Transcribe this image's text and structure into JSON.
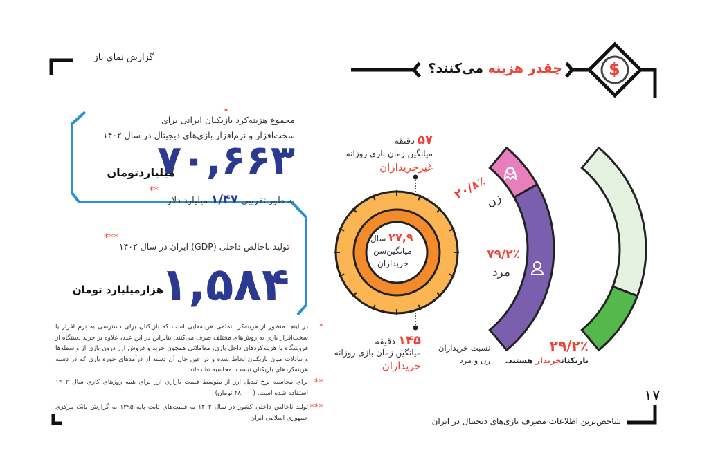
{
  "header": {
    "report_name": "گزارش نمای باز",
    "title_highlight": "چقدر هزینه",
    "title_rest": "می‌کنند؟",
    "icon": "dollar-icon"
  },
  "spending": {
    "star": "*",
    "line1": "مجموع هزینه‌کرد بازیکنان ایرانی برای",
    "line2": "سخت‌افزار و نرم‌افزار بازی‌های دیجیتال در سال ۱۴۰۲",
    "value": "۷۰,۶۶۳",
    "unit": "میلیاردتومان",
    "usd_stars": "**",
    "usd_prefix": "به طور تقریبی",
    "usd_value": "۱/۴۷",
    "usd_unit": "میلیارد دلار"
  },
  "gdp": {
    "stars": "***",
    "label": "تولید ناخالص داخلی (GDP) ایران در سال ۱۴۰۲",
    "value": "۱,۵۸۴",
    "unit": "هزارمیلیارد تومان"
  },
  "footnotes": [
    {
      "stars": "*",
      "text": "در اینجا منظور از هزینه‌کرد تمامی هزینه‌هایی است که بازیکنان برای دسترسی به نرم افزار یا سخت‌افزار بازی به روش‌های مختلف صرف می‌کنند. بنابراین در این عدد، علاوه بر خرید دستگاه از فروشگاه یا هزینه‌کردهای داخل بازی، معاملاتی همچون خرید و فروش ارز درون بازی از واسطه‌ها و تبادلات میان بازیکنان لحاظ شده و در عین حال آن دسته از درآمدهای حوزه بازی که در دسته هزینه‌کردهای بازیکنان نیست، محاسبه نشده‌اند."
    },
    {
      "stars": "**",
      "text": "برای محاسبه نرخ تبدیل ارز از متوسط قیمت بازاری ارز برای همه روزهای کاری سال ۱۴۰۲ استفاده شده است. (۴۸,۰۰۰ تومان)"
    },
    {
      "stars": "***",
      "text": "تولید ناخالص داخلی کشور در سال ۱۴۰۲ به قیمت‌های ثابت پایه ۱۳۹۵ به گزارش بانک مرکزی جمهوری اسلامی ایران"
    }
  ],
  "playtime": {
    "non_buyers": {
      "value": "۵۷",
      "unit": "دقیقه",
      "label": "میانگین زمان بازی روزانه",
      "group": "غیرخریداران"
    },
    "buyers": {
      "value": "۱۴۵",
      "unit": "دقیقه",
      "label": "میانگین زمان بازی روزانه",
      "group": "خریداران"
    },
    "age": {
      "value": "۲۷,۹",
      "unit": "سال",
      "label1": "میانگین‌سن",
      "label2": "خریداران"
    }
  },
  "gender": {
    "female": {
      "pct": "۲۰/۸٪",
      "label": "زن",
      "share": 20.8,
      "icon": "female-user-icon"
    },
    "male": {
      "pct": "۷۹/۲٪",
      "label": "مرد",
      "share": 79.2,
      "icon": "male-user-icon"
    },
    "caption1": "نسبت خریداران",
    "caption2": "زن و مرد"
  },
  "buyers_share": {
    "pct": "۲۹/۲٪",
    "share": 29.2,
    "caption_a": "بازیکنان",
    "caption_b": "خریدار",
    "caption_c": "هستند."
  },
  "footer": {
    "page_number": "۱۷",
    "title": "شاخص‌ترین اطلاعات مصرف بازی‌های دیجیتال در ایران"
  },
  "colors": {
    "red": "#ef4136",
    "navy": "#2b3990",
    "blue": "#2d8fd5",
    "pink": "#e77fbd",
    "purple": "#7a5fae",
    "green": "#55b84d",
    "light_green": "#e5f2e0",
    "orange": "#fbb552",
    "dark_orange": "#f38a2c"
  }
}
